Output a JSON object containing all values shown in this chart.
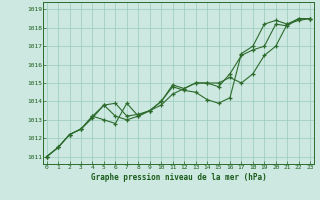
{
  "xlabel": "Graphe pression niveau de la mer (hPa)",
  "background_color": "#cce8e0",
  "plot_bg_color": "#cce8e0",
  "grid_color": "#99ccbb",
  "line_color": "#2d6b2d",
  "xlim": [
    -0.3,
    23.3
  ],
  "ylim": [
    1010.6,
    1019.4
  ],
  "xticks": [
    0,
    1,
    2,
    3,
    4,
    5,
    6,
    7,
    8,
    9,
    10,
    11,
    12,
    13,
    14,
    15,
    16,
    17,
    18,
    19,
    20,
    21,
    22,
    23
  ],
  "yticks": [
    1011,
    1012,
    1013,
    1014,
    1015,
    1016,
    1017,
    1018,
    1019
  ],
  "series": [
    [
      0,
      1011.0
    ],
    [
      1,
      1011.5
    ],
    [
      2,
      1012.2
    ],
    [
      3,
      1012.5
    ],
    [
      4,
      1013.1
    ],
    [
      5,
      1013.8
    ],
    [
      6,
      1013.9
    ],
    [
      7,
      1013.2
    ],
    [
      8,
      1013.3
    ],
    [
      9,
      1013.5
    ],
    [
      10,
      1014.0
    ],
    [
      11,
      1014.8
    ],
    [
      12,
      1014.6
    ],
    [
      13,
      1014.5
    ],
    [
      14,
      1014.1
    ],
    [
      15,
      1013.9
    ],
    [
      16,
      1014.2
    ],
    [
      17,
      1016.6
    ],
    [
      18,
      1017.0
    ],
    [
      19,
      1018.2
    ],
    [
      20,
      1018.4
    ],
    [
      21,
      1018.2
    ],
    [
      22,
      1018.5
    ],
    [
      23,
      1018.5
    ]
  ],
  "series2": [
    [
      0,
      1011.0
    ],
    [
      1,
      1011.5
    ],
    [
      2,
      1012.2
    ],
    [
      3,
      1012.5
    ],
    [
      4,
      1013.2
    ],
    [
      5,
      1013.8
    ],
    [
      6,
      1013.2
    ],
    [
      7,
      1013.0
    ],
    [
      8,
      1013.2
    ],
    [
      9,
      1013.5
    ],
    [
      10,
      1014.0
    ],
    [
      11,
      1014.9
    ],
    [
      12,
      1014.7
    ],
    [
      13,
      1015.0
    ],
    [
      14,
      1015.0
    ],
    [
      15,
      1014.8
    ],
    [
      16,
      1015.5
    ],
    [
      17,
      1016.5
    ],
    [
      18,
      1016.8
    ],
    [
      19,
      1017.0
    ],
    [
      20,
      1018.2
    ],
    [
      21,
      1018.1
    ],
    [
      22,
      1018.5
    ],
    [
      23,
      1018.5
    ]
  ],
  "series3": [
    [
      0,
      1011.0
    ],
    [
      1,
      1011.5
    ],
    [
      2,
      1012.2
    ],
    [
      3,
      1012.5
    ],
    [
      4,
      1013.2
    ],
    [
      5,
      1013.0
    ],
    [
      6,
      1012.8
    ],
    [
      7,
      1013.9
    ],
    [
      8,
      1013.2
    ],
    [
      9,
      1013.5
    ],
    [
      10,
      1013.8
    ],
    [
      11,
      1014.4
    ],
    [
      12,
      1014.7
    ],
    [
      13,
      1015.0
    ],
    [
      14,
      1015.0
    ],
    [
      15,
      1015.0
    ],
    [
      16,
      1015.3
    ],
    [
      17,
      1015.0
    ],
    [
      18,
      1015.5
    ],
    [
      19,
      1016.5
    ],
    [
      20,
      1017.0
    ],
    [
      21,
      1018.2
    ],
    [
      22,
      1018.4
    ],
    [
      23,
      1018.5
    ]
  ]
}
